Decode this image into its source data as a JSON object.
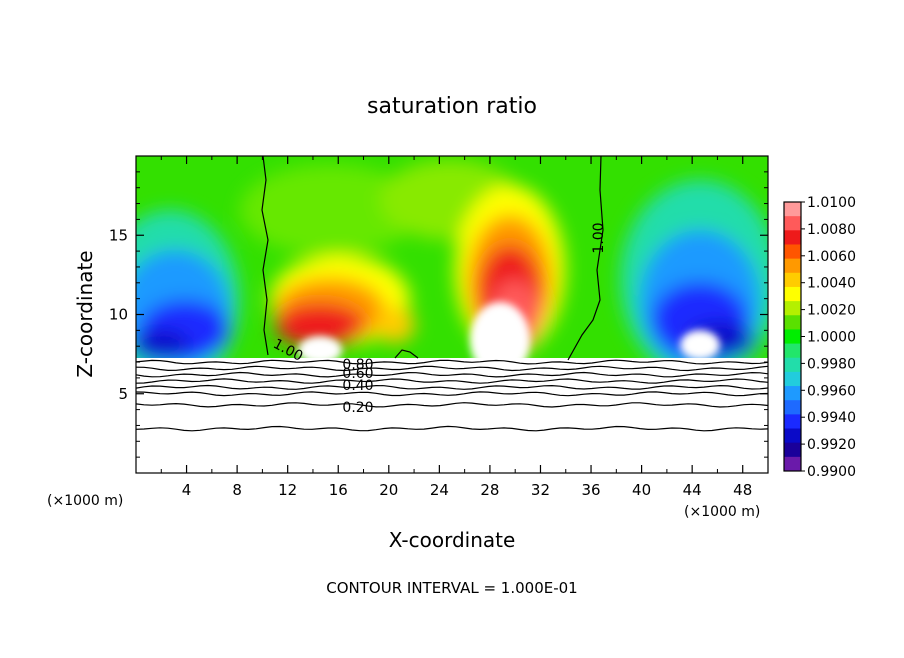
{
  "chart_data": {
    "type": "heatmap",
    "title": "saturation ratio",
    "xlabel": "X-coordinate",
    "ylabel": "Z-coordinate",
    "x_unit_note": "(×1000 m)",
    "z_unit_note": "(×1000 m)",
    "footer": "CONTOUR INTERVAL = 1.000E-01",
    "xlim": [
      0,
      50
    ],
    "ylim": [
      0,
      20
    ],
    "x_ticks": [
      "4",
      "8",
      "12",
      "16",
      "20",
      "24",
      "28",
      "32",
      "36",
      "40",
      "44",
      "48"
    ],
    "y_ticks": [
      "5",
      "10",
      "15"
    ],
    "colorbar": {
      "labels": [
        "1.0100",
        "1.0080",
        "1.0060",
        "1.0040",
        "1.0020",
        "1.0000",
        "0.9980",
        "0.9960",
        "0.9940",
        "0.9920",
        "0.9900"
      ],
      "colors_top_to_bottom": [
        "#ff9a9a",
        "#ff5a5a",
        "#ee1a1a",
        "#ff5500",
        "#ff9900",
        "#ffcc00",
        "#ffff00",
        "#b4f000",
        "#5ae000",
        "#00ee00",
        "#22e66a",
        "#22ddaa",
        "#22ccdd",
        "#1e9aff",
        "#1e6aff",
        "#1a2aff",
        "#0a0ac8",
        "#1a009a",
        "#6a1aaa"
      ]
    },
    "contour_labels": [
      "1.00",
      "1.00",
      "0.80",
      "0.60",
      "0.40",
      "0.20"
    ],
    "contour_lines_below_cloud_z": [
      7.0,
      6.6,
      6.2,
      5.8,
      5.4,
      5.0,
      4.3,
      2.8
    ],
    "contour_labeled_values": {
      "0.80": 6.9,
      "0.60": 6.4,
      "0.40": 5.6,
      "0.20": 4.3
    }
  }
}
